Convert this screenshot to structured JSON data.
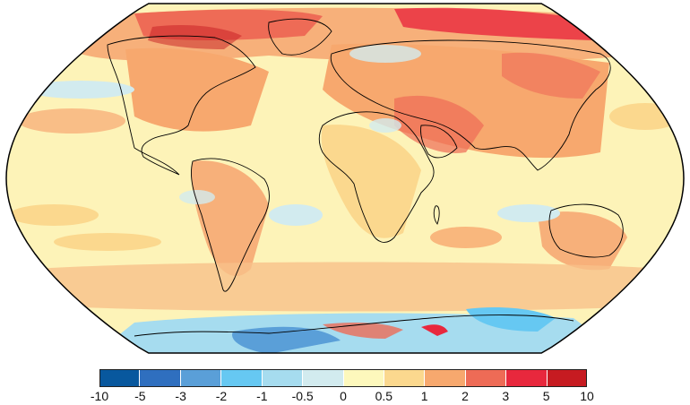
{
  "map": {
    "projection": "Robinson",
    "subject": "temperature-anomaly"
  },
  "legend": {
    "colors": [
      "#08589e",
      "#2f6fbf",
      "#5a9fd8",
      "#66c8f2",
      "#a6dcef",
      "#d2ebef",
      "#fdf8bc",
      "#fbd88e",
      "#f7a86e",
      "#ee6b56",
      "#e8283d",
      "#c61b21"
    ],
    "ticks": [
      "-10",
      "-5",
      "-3",
      "-2",
      "-1",
      "-0.5",
      "0",
      "0.5",
      "1",
      "2",
      "3",
      "5",
      "10"
    ]
  }
}
